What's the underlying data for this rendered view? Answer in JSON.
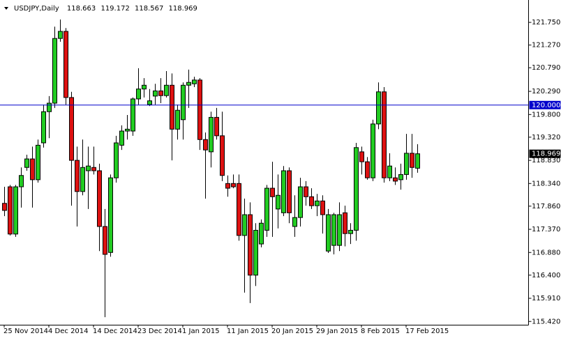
{
  "chart_data": {
    "type": "candlestick",
    "title": "USDJPY,Daily",
    "categories": [
      "25 Nov 2014",
      null,
      null,
      null,
      null,
      null,
      null,
      null,
      "4 Dec 2014",
      null,
      null,
      null,
      null,
      null,
      null,
      null,
      "14 Dec 2014",
      null,
      null,
      null,
      null,
      null,
      null,
      null,
      "23 Dec 2014",
      null,
      null,
      null,
      null,
      null,
      null,
      null,
      "1 Jan 2015",
      null,
      null,
      null,
      null,
      null,
      null,
      null,
      "11 Jan 2015",
      null,
      null,
      null,
      null,
      null,
      null,
      null,
      "20 Jan 2015",
      null,
      null,
      null,
      null,
      null,
      null,
      null,
      "29 Jan 2015",
      null,
      null,
      null,
      null,
      null,
      null,
      null,
      "8 Feb 2015",
      null,
      null,
      null,
      null,
      null,
      null,
      null,
      "17 Feb 2015",
      null,
      null
    ],
    "open": [
      117.92,
      118.27,
      117.27,
      118.27,
      118.68,
      118.86,
      118.42,
      119.2,
      119.86,
      120.04,
      121.41,
      121.56,
      120.16,
      118.83,
      118.17,
      118.61,
      118.68,
      118.61,
      117.43,
      116.88,
      118.46,
      119.15,
      119.45,
      119.45,
      120.13,
      120.34,
      120.01,
      120.19,
      120.3,
      120.2,
      120.42,
      119.49,
      119.69,
      120.42,
      120.45,
      120.53,
      119.27,
      119.01,
      119.74,
      119.35,
      118.34,
      118.34,
      118.34,
      117.24,
      117.68,
      116.4,
      117.06,
      117.35,
      118.24,
      117.8,
      117.72,
      118.61,
      117.43,
      117.62,
      118.27,
      118.06,
      117.87,
      117.97,
      116.91,
      117.03,
      117.03,
      117.72,
      117.28,
      117.35,
      119.01,
      118.8,
      118.46,
      119.6,
      120.28,
      118.46,
      118.46,
      118.42,
      118.53,
      118.98,
      118.663
    ],
    "high": [
      118.27,
      118.31,
      118.31,
      118.68,
      118.95,
      119.12,
      119.27,
      120.01,
      120.19,
      121.66,
      121.81,
      121.63,
      120.28,
      119.12,
      119.27,
      119.12,
      119.12,
      118.76,
      117.8,
      118.53,
      119.35,
      119.57,
      119.79,
      120.16,
      120.78,
      120.57,
      120.34,
      120.45,
      120.57,
      120.72,
      120.67,
      120.01,
      120.48,
      120.75,
      120.6,
      120.57,
      119.42,
      119.86,
      119.94,
      119.86,
      118.51,
      118.53,
      118.53,
      118.02,
      117.94,
      117.5,
      117.58,
      118.31,
      118.8,
      118.53,
      118.71,
      118.68,
      118.09,
      118.46,
      118.39,
      118.24,
      118.12,
      118.09,
      117.8,
      117.72,
      117.94,
      117.87,
      117.5,
      119.2,
      119.12,
      118.9,
      119.69,
      120.48,
      120.38,
      118.98,
      118.68,
      118.76,
      119.39,
      119.39,
      119.172
    ],
    "low": [
      117.65,
      117.24,
      117.21,
      117.83,
      118.61,
      117.83,
      118.36,
      119.1,
      119.3,
      119.94,
      121.34,
      120.01,
      117.87,
      117.43,
      118.09,
      117.8,
      118.53,
      116.91,
      115.51,
      116.79,
      118.36,
      119.05,
      119.27,
      119.35,
      120.01,
      120.16,
      119.98,
      120.01,
      120.04,
      120.16,
      118.83,
      119.27,
      119.27,
      119.94,
      120.38,
      119.05,
      118.02,
      118.68,
      119.27,
      118.39,
      118.06,
      118.24,
      117.13,
      116.03,
      115.81,
      116.17,
      116.99,
      117.21,
      117.21,
      117.39,
      117.65,
      117.5,
      117.21,
      117.43,
      117.87,
      117.8,
      117.65,
      117.28,
      116.87,
      116.84,
      116.91,
      117.01,
      117.06,
      117.13,
      118.53,
      118.42,
      118.39,
      119.49,
      118.36,
      118.39,
      118.31,
      118.21,
      118.42,
      118.46,
      118.567
    ],
    "close": [
      117.77,
      117.27,
      118.27,
      118.51,
      118.86,
      118.42,
      119.15,
      119.86,
      120.04,
      121.41,
      121.56,
      120.16,
      118.83,
      118.17,
      118.68,
      118.71,
      118.61,
      117.43,
      116.84,
      118.46,
      119.2,
      119.45,
      119.49,
      120.13,
      120.34,
      120.42,
      120.09,
      120.3,
      120.2,
      120.42,
      119.49,
      119.89,
      120.42,
      120.48,
      120.53,
      119.27,
      119.05,
      119.74,
      119.35,
      118.51,
      118.24,
      118.27,
      117.24,
      117.68,
      116.4,
      117.35,
      117.5,
      118.24,
      118.06,
      118.09,
      118.61,
      117.72,
      117.62,
      118.27,
      118.06,
      117.87,
      117.97,
      117.68,
      117.68,
      117.68,
      117.68,
      117.28,
      117.35,
      119.1,
      118.8,
      118.46,
      119.6,
      120.28,
      118.46,
      118.71,
      118.39,
      118.53,
      118.98,
      118.68,
      118.969
    ],
    "up_color": "#22cc22",
    "down_color": "#dd1111",
    "ylim": [
      115.35,
      122.15
    ],
    "yticks": [
      {
        "value": 121.75,
        "label": "121.750"
      },
      {
        "value": 121.27,
        "label": "121.270"
      },
      {
        "value": 120.79,
        "label": "120.790"
      },
      {
        "value": 120.29,
        "label": "120.290"
      },
      {
        "value": 119.8,
        "label": "119.800"
      },
      {
        "value": 119.32,
        "label": "119.320"
      },
      {
        "value": 118.83,
        "label": "118.830"
      },
      {
        "value": 118.34,
        "label": "118.340"
      },
      {
        "value": 117.86,
        "label": "117.860"
      },
      {
        "value": 117.37,
        "label": "117.370"
      },
      {
        "value": 116.88,
        "label": "116.880"
      },
      {
        "value": 116.4,
        "label": "116.400"
      },
      {
        "value": 115.91,
        "label": "115.910"
      },
      {
        "value": 115.42,
        "label": "115.420"
      }
    ],
    "hline": {
      "value": 120,
      "label": "120.000",
      "color": "#0000cc"
    },
    "grid": false
  }
}
